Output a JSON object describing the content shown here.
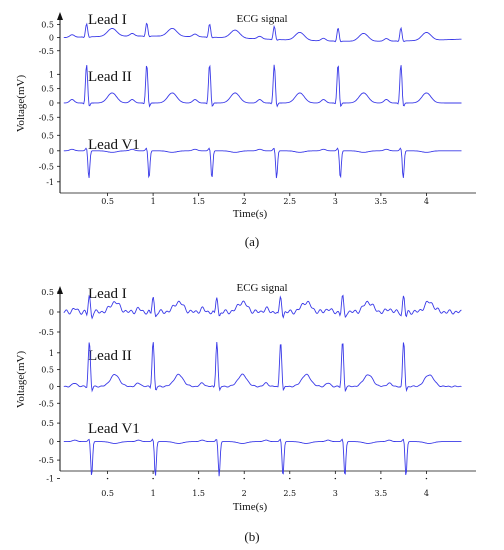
{
  "chart_data": [
    {
      "type": "line",
      "panel_caption": "(a)",
      "title": "ECG signal",
      "xlabel": "Time(s)",
      "ylabel": "Voltage(mV)",
      "x_ticks": [
        "0.5",
        "1",
        "1.5",
        "2",
        "2.5",
        "3",
        "3.5",
        "4"
      ],
      "xlim": [
        0,
        4.5
      ],
      "grid": false,
      "line_color": "#3a3ae8",
      "leads": [
        {
          "name": "Lead I",
          "y_ticks": [
            "0.5",
            "0",
            "-0.5"
          ],
          "y_tick_values": [
            0.5,
            0,
            -0.5
          ],
          "ylim": [
            -0.7,
            0.9
          ],
          "beat_times": [
            0.27,
            0.93,
            1.62,
            2.33,
            3.03,
            3.72
          ],
          "r_amp": 0.5,
          "q_amp": -0.05,
          "s_amp": -0.05,
          "t_amp": 0.3,
          "p_amp": 0.1,
          "baseline_wander": 0.1,
          "noise": 0.0
        },
        {
          "name": "Lead II",
          "y_ticks": [
            "1",
            "0.5",
            "0",
            "-0.5"
          ],
          "y_tick_values": [
            1,
            0.5,
            0,
            -0.5
          ],
          "ylim": [
            -0.7,
            1.5
          ],
          "beat_times": [
            0.27,
            0.93,
            1.62,
            2.33,
            3.03,
            3.72
          ],
          "r_amp": 1.35,
          "q_amp": -0.1,
          "s_amp": -0.2,
          "t_amp": 0.35,
          "p_amp": 0.12,
          "baseline_wander": 0.0,
          "noise": 0.0
        },
        {
          "name": "Lead V1",
          "y_ticks": [
            "0.5",
            "0",
            "-0.5",
            "-1"
          ],
          "y_tick_values": [
            0.5,
            0,
            -0.5,
            -1
          ],
          "ylim": [
            -1.2,
            0.8
          ],
          "beat_times": [
            0.27,
            0.93,
            1.62,
            2.33,
            3.03,
            3.72
          ],
          "r_amp": 0.1,
          "q_amp": 0.0,
          "s_amp": -0.9,
          "t_amp": -0.05,
          "p_amp": 0.05,
          "baseline_wander": 0.0,
          "noise": 0.0
        }
      ]
    },
    {
      "type": "line",
      "panel_caption": "(b)",
      "title": "ECG signal",
      "xlabel": "Time(s)",
      "ylabel": "Voltage(mV)",
      "x_ticks": [
        "0.5",
        "1",
        "1.5",
        "2",
        "2.5",
        "3",
        "3.5",
        "4"
      ],
      "xlim": [
        0,
        4.5
      ],
      "grid": false,
      "line_color": "#3a3ae8",
      "leads": [
        {
          "name": "Lead I",
          "y_ticks": [
            "0.5",
            "0",
            "-0.5"
          ],
          "y_tick_values": [
            0.5,
            0,
            -0.5
          ],
          "ylim": [
            -0.7,
            0.8
          ],
          "beat_times": [
            0.3,
            1.0,
            1.7,
            2.4,
            3.08,
            3.75
          ],
          "r_amp": 0.4,
          "q_amp": -0.1,
          "s_amp": -0.15,
          "t_amp": 0.25,
          "p_amp": 0.08,
          "baseline_wander": 0.0,
          "noise": 0.06
        },
        {
          "name": "Lead II",
          "y_ticks": [
            "1",
            "0.5",
            "0",
            "-0.5"
          ],
          "y_tick_values": [
            1,
            0.5,
            0,
            -0.5
          ],
          "ylim": [
            -0.7,
            1.5
          ],
          "beat_times": [
            0.3,
            1.0,
            1.7,
            2.4,
            3.08,
            3.75
          ],
          "r_amp": 1.35,
          "q_amp": -0.1,
          "s_amp": -0.2,
          "t_amp": 0.35,
          "p_amp": 0.1,
          "baseline_wander": 0.0,
          "noise": 0.02
        },
        {
          "name": "Lead V1",
          "y_ticks": [
            "0.5",
            "0",
            "-0.5",
            "-1"
          ],
          "y_tick_values": [
            0.5,
            0,
            -0.5,
            -1
          ],
          "ylim": [
            -1.2,
            0.8
          ],
          "beat_times": [
            0.3,
            1.0,
            1.7,
            2.4,
            3.08,
            3.75
          ],
          "r_amp": 0.08,
          "q_amp": 0.0,
          "s_amp": -0.95,
          "t_amp": -0.05,
          "p_amp": 0.04,
          "baseline_wander": 0.0,
          "noise": 0.0
        }
      ]
    }
  ]
}
